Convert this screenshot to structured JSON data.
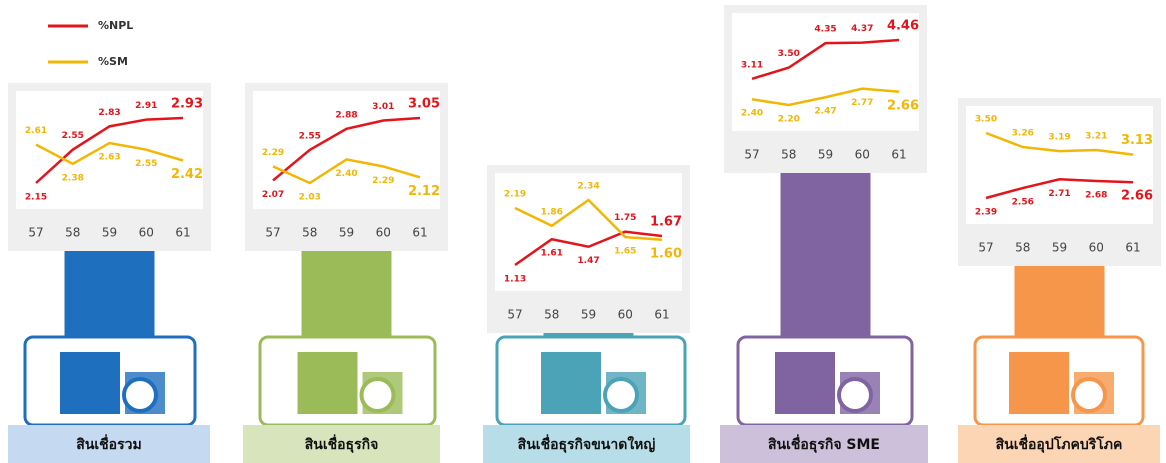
{
  "legend": {
    "items": [
      {
        "name": "%NPL",
        "color": "#e3141c"
      },
      {
        "name": "%SM",
        "color": "#f2b705"
      }
    ]
  },
  "chart_data": [
    {
      "type": "line",
      "title": "สินเชื่อรวม",
      "color": "#1f6fbf",
      "label_color": "#c5d9f1",
      "categories": [
        "57",
        "58",
        "59",
        "60",
        "61"
      ],
      "series": [
        {
          "color": "#e3141c",
          "values": [
            2.15,
            2.55,
            2.83,
            2.91,
            2.93
          ],
          "value_labels": [
            "2.15",
            "2.55",
            "2.83",
            "2.91",
            "2.93"
          ]
        },
        {
          "color": "#f2b705",
          "values": [
            2.61,
            2.38,
            2.63,
            2.55,
            2.42
          ],
          "value_labels": [
            "2.61",
            "2.38",
            "2.63",
            "2.55",
            "2.42"
          ]
        }
      ]
    },
    {
      "type": "line",
      "title": "สินเชื่อธุรกิจ",
      "color": "#9bbb59",
      "label_color": "#d7e4bc",
      "categories": [
        "57",
        "58",
        "59",
        "60",
        "61"
      ],
      "series": [
        {
          "color": "#e3141c",
          "values": [
            2.07,
            2.55,
            2.88,
            3.01,
            3.05
          ],
          "value_labels": [
            "2.07",
            "2.55",
            "2.88",
            "3.01",
            "3.05"
          ]
        },
        {
          "color": "#f2b705",
          "values": [
            2.29,
            2.03,
            2.4,
            2.29,
            2.12
          ],
          "value_labels": [
            "2.29",
            "2.03",
            "2.40",
            "2.29",
            "2.12"
          ]
        }
      ]
    },
    {
      "type": "line",
      "title": "สินเชื่อธุรกิจขนาดใหญ่",
      "color": "#4ba3b7",
      "label_color": "#b7dee8",
      "categories": [
        "57",
        "58",
        "59",
        "60",
        "61"
      ],
      "series": [
        {
          "color": "#e3141c",
          "values": [
            1.13,
            1.61,
            1.47,
            1.75,
            1.67
          ],
          "value_labels": [
            "1.13",
            "1.61",
            "1.47",
            "1.75",
            "1.67"
          ]
        },
        {
          "color": "#f2b705",
          "values": [
            2.19,
            1.86,
            2.34,
            1.65,
            1.6
          ],
          "value_labels": [
            "2.19",
            "1.86",
            "2.34",
            "1.65",
            "1.60"
          ]
        }
      ]
    },
    {
      "type": "line",
      "title": "สินเชื่อธุรกิจ SME",
      "color": "#8064a2",
      "label_color": "#ccc0da",
      "categories": [
        "57",
        "58",
        "59",
        "60",
        "61"
      ],
      "series": [
        {
          "color": "#e3141c",
          "values": [
            3.11,
            3.5,
            4.35,
            4.37,
            4.46
          ],
          "value_labels": [
            "3.11",
            "3.50",
            "4.35",
            "4.37",
            "4.46"
          ]
        },
        {
          "color": "#f2b705",
          "values": [
            2.4,
            2.2,
            2.47,
            2.77,
            2.66
          ],
          "value_labels": [
            "2.40",
            "2.20",
            "2.47",
            "2.77",
            "2.66"
          ]
        }
      ]
    },
    {
      "type": "line",
      "title": "สินเชื่ออุปโภคบริโภค",
      "color": "#f5964a",
      "label_color": "#fcd5b4",
      "categories": [
        "57",
        "58",
        "59",
        "60",
        "61"
      ],
      "series": [
        {
          "color": "#e3141c",
          "values": [
            2.39,
            2.56,
            2.71,
            2.68,
            2.66
          ],
          "value_labels": [
            "2.39",
            "2.56",
            "2.71",
            "2.68",
            "2.66"
          ]
        },
        {
          "color": "#f2b705",
          "values": [
            3.5,
            3.26,
            3.19,
            3.21,
            3.13
          ],
          "value_labels": [
            "3.50",
            "3.26",
            "3.19",
            "3.21",
            "3.13"
          ]
        }
      ]
    }
  ]
}
